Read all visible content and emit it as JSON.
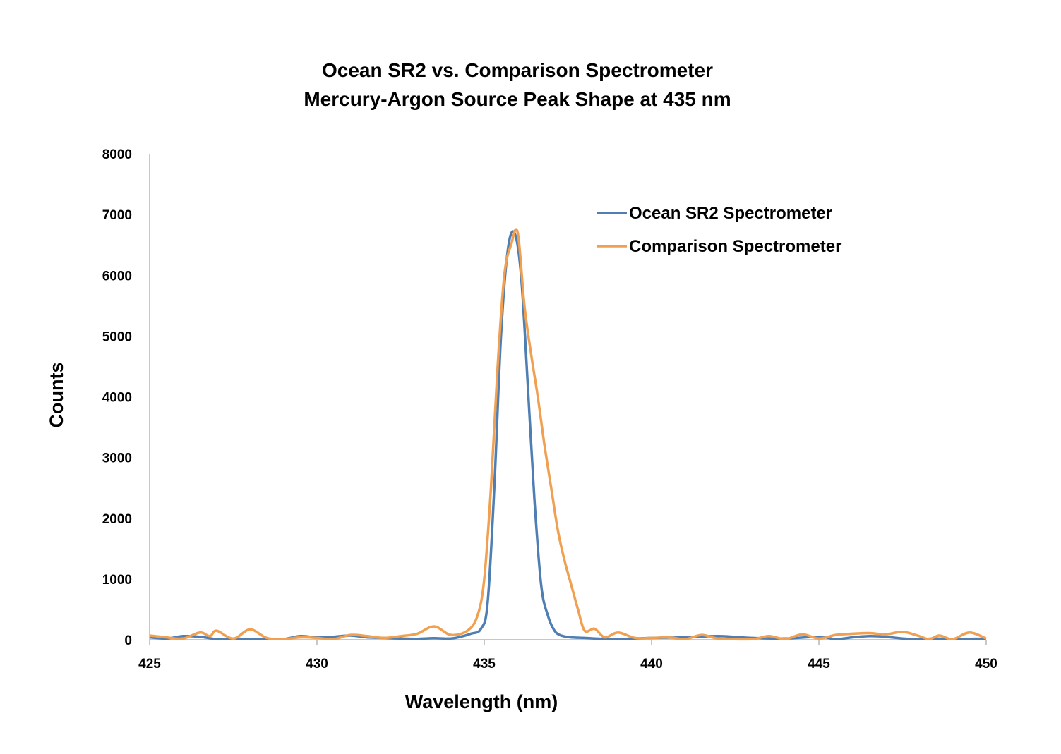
{
  "chart_data": {
    "type": "line",
    "title": [
      "Ocean SR2 vs. Comparison Spectrometer",
      "Mercury-Argon Source Peak Shape at 435 nm"
    ],
    "xlabel": "Wavelength (nm)",
    "ylabel": "Counts",
    "xlim": [
      425,
      450
    ],
    "ylim": [
      0,
      8000
    ],
    "xticks": [
      425,
      430,
      435,
      440,
      445,
      450
    ],
    "yticks": [
      0,
      1000,
      2000,
      3000,
      4000,
      5000,
      6000,
      7000,
      8000
    ],
    "grid": false,
    "legend_position": "top-right",
    "series": [
      {
        "name": "Ocean SR2 Spectrometer",
        "color": "#4F7EB3",
        "x": [
          425,
          425.5,
          426,
          426.5,
          427,
          427.5,
          428,
          428.5,
          429,
          429.5,
          430,
          430.5,
          431,
          431.5,
          432,
          432.5,
          433,
          433.5,
          434,
          434.3,
          434.6,
          434.9,
          435.1,
          435.3,
          435.5,
          435.7,
          435.9,
          436.1,
          436.3,
          436.5,
          436.7,
          436.9,
          437.1,
          437.3,
          437.6,
          438,
          438.5,
          439,
          440,
          441,
          442,
          443,
          444,
          445,
          445.5,
          446,
          446.5,
          447,
          447.5,
          448,
          448.5,
          449,
          449.5,
          450
        ],
        "values": [
          40,
          20,
          60,
          50,
          10,
          20,
          10,
          15,
          10,
          60,
          40,
          50,
          70,
          40,
          30,
          20,
          15,
          25,
          20,
          50,
          100,
          180,
          600,
          2500,
          5000,
          6400,
          6700,
          6000,
          4200,
          2300,
          900,
          400,
          150,
          70,
          40,
          30,
          15,
          10,
          30,
          40,
          60,
          30,
          20,
          50,
          10,
          40,
          60,
          50,
          20,
          10,
          20,
          10,
          15,
          15
        ]
      },
      {
        "name": "Comparison Spectrometer",
        "color": "#F0A050",
        "x": [
          425,
          425.5,
          426,
          426.5,
          426.8,
          427,
          427.5,
          428,
          428.5,
          429,
          429.5,
          430,
          430.5,
          431,
          431.5,
          432,
          432.5,
          433,
          433.5,
          434,
          434.5,
          434.8,
          435,
          435.2,
          435.4,
          435.6,
          435.8,
          436,
          436.2,
          436.4,
          436.6,
          436.8,
          437,
          437.2,
          437.4,
          437.6,
          437.8,
          438,
          438.3,
          438.6,
          439,
          439.5,
          440,
          440.5,
          441,
          441.5,
          442,
          443,
          443.5,
          444,
          444.5,
          445,
          445.5,
          446,
          446.5,
          447,
          447.5,
          448,
          448.3,
          448.6,
          449,
          449.5,
          450
        ],
        "values": [
          70,
          40,
          20,
          120,
          60,
          150,
          20,
          170,
          30,
          10,
          40,
          30,
          10,
          80,
          60,
          30,
          60,
          100,
          220,
          80,
          150,
          400,
          1000,
          2500,
          4500,
          6000,
          6500,
          6700,
          5500,
          4700,
          4000,
          3200,
          2500,
          1800,
          1300,
          900,
          500,
          150,
          180,
          40,
          120,
          30,
          30,
          40,
          10,
          80,
          20,
          10,
          60,
          10,
          90,
          20,
          80,
          100,
          110,
          90,
          130,
          60,
          10,
          70,
          10,
          120,
          20
        ]
      }
    ]
  }
}
